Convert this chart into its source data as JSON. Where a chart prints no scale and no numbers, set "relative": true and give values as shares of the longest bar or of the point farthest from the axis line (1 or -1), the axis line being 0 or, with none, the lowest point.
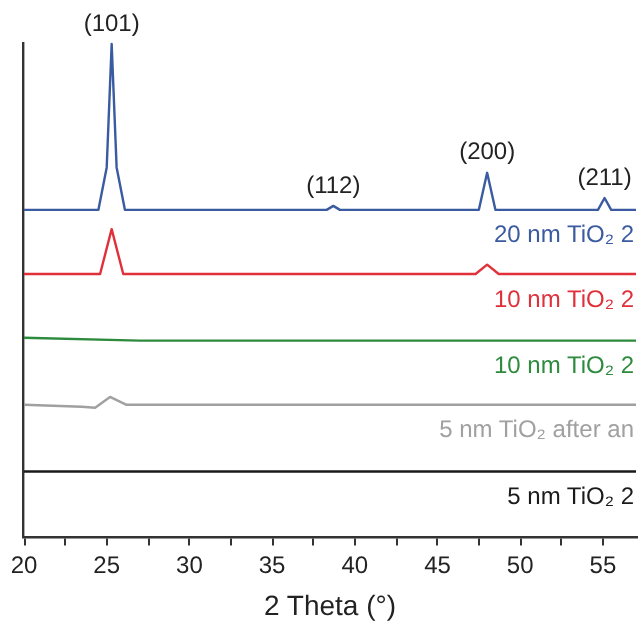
{
  "chart_data": {
    "type": "line",
    "relative": true,
    "xlabel": "2 Theta (°)",
    "xlim": [
      20,
      57
    ],
    "xticks": [
      20,
      {
        "value": 22.5,
        "label": null
      },
      25,
      {
        "value": 27.5,
        "label": null
      },
      30,
      {
        "value": 32.5,
        "label": null
      },
      35,
      {
        "value": 37.5,
        "label": null
      },
      40,
      {
        "value": 42.5,
        "label": null
      },
      45,
      {
        "value": 47.5,
        "label": null
      },
      50,
      {
        "value": 52.5,
        "label": null
      },
      55
    ],
    "grid": false,
    "legend": false,
    "marker": "none",
    "line_style": "solid",
    "series": [
      {
        "name": "20 nm TiO₂ 2",
        "color": "#3a5ba0",
        "x": [
          20,
          24.5,
          25.0,
          25.3,
          25.6,
          26.1,
          38.3,
          38.7,
          39.1,
          47.5,
          48.0,
          48.5,
          54.7,
          55.1,
          55.5,
          57
        ],
        "values": [
          0.664,
          0.664,
          0.75,
          1.0,
          0.75,
          0.664,
          0.664,
          0.672,
          0.664,
          0.664,
          0.739,
          0.664,
          0.664,
          0.688,
          0.664,
          0.664
        ]
      },
      {
        "name": "10 nm TiO₂ 2",
        "color": "#e0303a",
        "x": [
          20,
          24.6,
          25.3,
          26.0,
          47.3,
          48.0,
          48.7,
          57
        ],
        "values": [
          0.534,
          0.534,
          0.625,
          0.534,
          0.534,
          0.553,
          0.534,
          0.534
        ]
      },
      {
        "name": "10 nm TiO₂ 2",
        "color": "#2e8b3e",
        "x": [
          20,
          27,
          57
        ],
        "values": [
          0.405,
          0.399,
          0.399
        ]
      },
      {
        "name": "5 nm TiO₂ after an",
        "color": "#a0a0a0",
        "x": [
          20,
          23.5,
          24.3,
          25.2,
          26.2,
          57
        ],
        "values": [
          0.269,
          0.265,
          0.263,
          0.285,
          0.269,
          0.269
        ]
      },
      {
        "name": "5 nm TiO₂ 2",
        "color": "#1a1a1a",
        "x": [
          20,
          57
        ],
        "values": [
          0.134,
          0.134
        ]
      }
    ],
    "annotations": [
      {
        "text": "(101)",
        "x": 25.3,
        "y": 1.0
      },
      {
        "text": "(112)",
        "x": 38.7,
        "y": 0.672
      },
      {
        "text": "(200)",
        "x": 48.0,
        "y": 0.739
      },
      {
        "text": "(211)",
        "x": 55.1,
        "y": 0.688
      }
    ]
  }
}
